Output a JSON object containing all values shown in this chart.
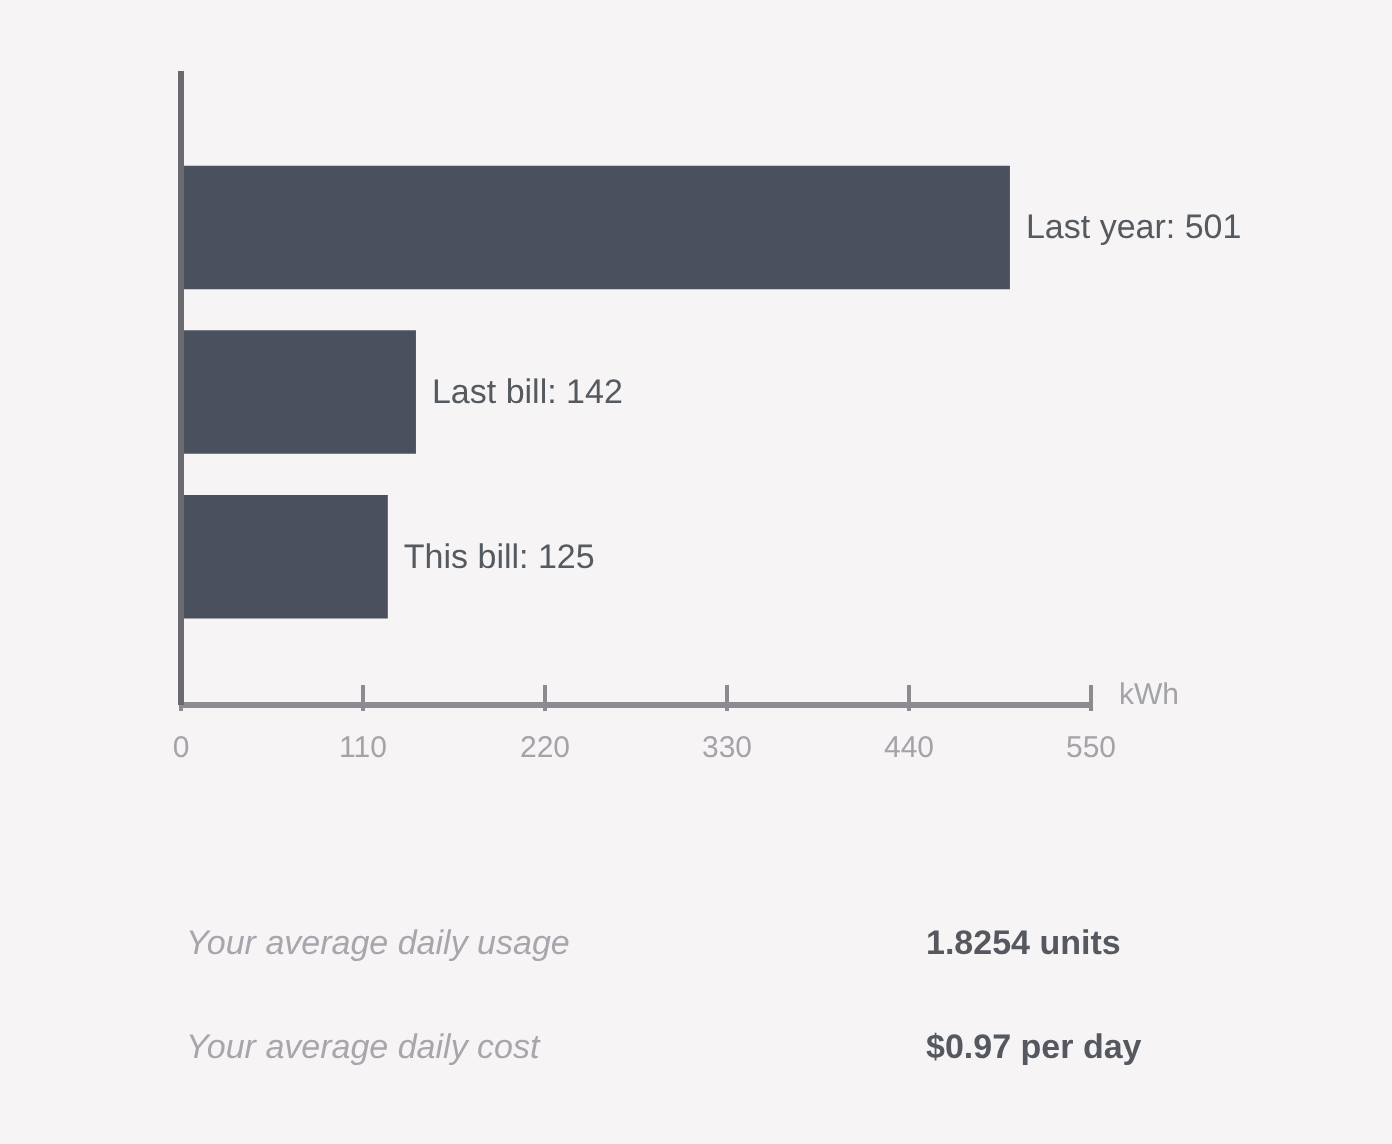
{
  "chart_data": {
    "type": "bar",
    "orientation": "horizontal",
    "categories": [
      null,
      null,
      null
    ],
    "values": [
      501,
      142,
      125
    ],
    "color": "#4b505e",
    "value_labels": [
      "Last year: 501",
      "Last bill: 142",
      "This bill: 125"
    ],
    "xlabel": "kWh",
    "xlim": [
      0,
      550
    ],
    "xticks": [
      0,
      110,
      220,
      330,
      440,
      550
    ],
    "tick_labels": "x",
    "annotations": [
      "Your average daily usage",
      "1.8254 units",
      "Your average daily cost",
      "$0.97 per day"
    ]
  }
}
